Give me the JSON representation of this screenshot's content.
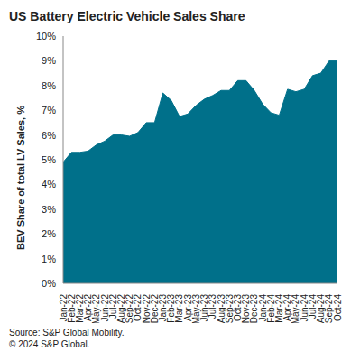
{
  "chart_data": {
    "type": "area",
    "title": "US Battery Electric Vehicle Sales Share",
    "y_label": "BEV Share of total LV Sales, %",
    "source": "Source: S&P Global Mobility.",
    "copyright": "© 2024 S&P Global.",
    "categories": [
      "Jan-22",
      "Feb-22",
      "Mar-22",
      "Apr-22",
      "May-22",
      "Jun-22",
      "Jul-22",
      "Aug-22",
      "Sep-22",
      "Oct-22",
      "Nov-22",
      "Dec-22",
      "Jan-23",
      "Feb-23",
      "Mar-23",
      "Apr-23",
      "May-23",
      "Jun-23",
      "Jul-23",
      "Aug-23",
      "Sep-23",
      "Oct-23",
      "Nov-23",
      "Dec-23",
      "Jan-24",
      "Feb-24",
      "Mar-24",
      "Apr-24",
      "May-24",
      "Jun-24",
      "Jul-24",
      "Aug-24",
      "Sep-24",
      "Oct-24"
    ],
    "values": [
      4.9,
      5.3,
      5.3,
      5.35,
      5.6,
      5.75,
      6.0,
      6.0,
      5.95,
      6.1,
      6.5,
      6.5,
      7.7,
      7.4,
      6.75,
      6.85,
      7.2,
      7.45,
      7.6,
      7.8,
      7.8,
      8.2,
      8.2,
      7.8,
      7.25,
      6.9,
      6.8,
      7.85,
      7.75,
      7.85,
      8.4,
      8.5,
      9.0,
      9.0
    ],
    "color": "#00708a",
    "ylim": [
      0,
      10
    ],
    "yticks": [
      {
        "value": 0,
        "label": "0%"
      },
      {
        "value": 1,
        "label": "1%"
      },
      {
        "value": 2,
        "label": "2%"
      },
      {
        "value": 3,
        "label": "3%"
      },
      {
        "value": 4,
        "label": "4%"
      },
      {
        "value": 5,
        "label": "5%"
      },
      {
        "value": 6,
        "label": "6%"
      },
      {
        "value": 7,
        "label": "7%"
      },
      {
        "value": 8,
        "label": "8%"
      },
      {
        "value": 9,
        "label": "9%"
      },
      {
        "value": 10,
        "label": "10%"
      }
    ],
    "grid": false
  }
}
